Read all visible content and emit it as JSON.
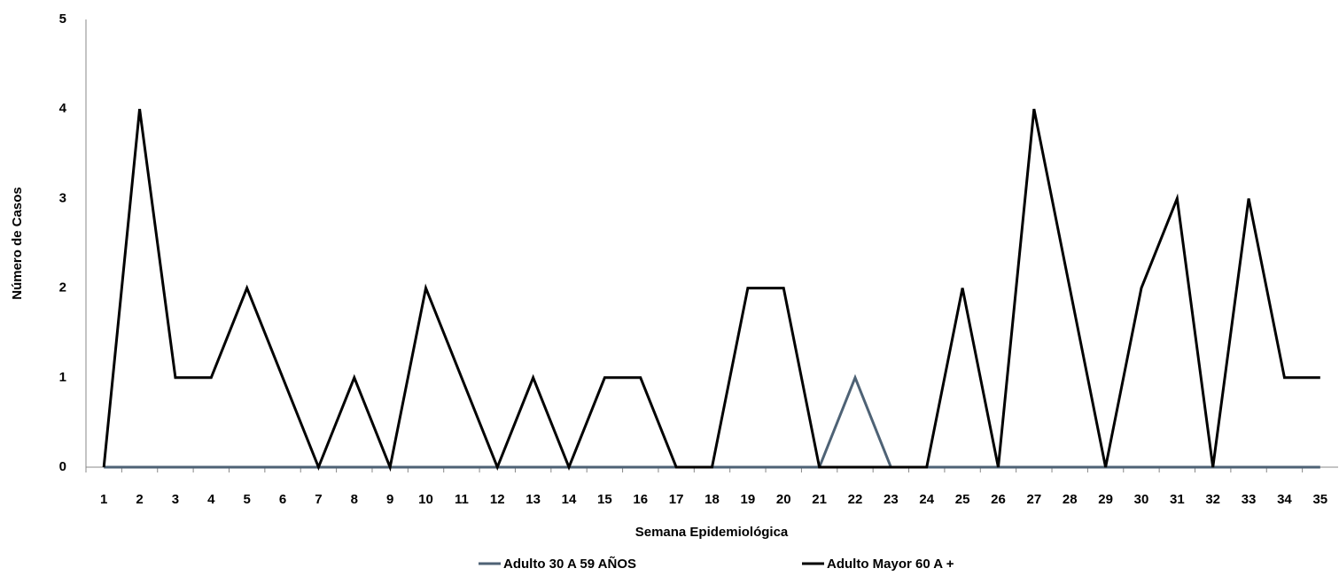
{
  "chart_data": {
    "type": "line",
    "x_label": "Semana Epidemiológica",
    "y_label": "Número de Casos",
    "categories": [
      "1",
      "2",
      "3",
      "4",
      "5",
      "6",
      "7",
      "8",
      "9",
      "10",
      "11",
      "12",
      "13",
      "14",
      "15",
      "16",
      "17",
      "18",
      "19",
      "20",
      "21",
      "22",
      "23",
      "24",
      "25",
      "26",
      "27",
      "28",
      "29",
      "30",
      "31",
      "32",
      "33",
      "34",
      "35"
    ],
    "series": [
      {
        "name": "Adulto 30 A 59 AÑOS",
        "color": "#4e6275",
        "values": [
          0,
          0,
          0,
          0,
          0,
          0,
          0,
          0,
          0,
          0,
          0,
          0,
          0,
          0,
          0,
          0,
          0,
          0,
          0,
          0,
          0,
          1,
          0,
          0,
          0,
          0,
          0,
          0,
          0,
          0,
          0,
          0,
          0,
          0,
          0
        ]
      },
      {
        "name": "Adulto Mayor 60 A +",
        "color": "#000000",
        "values": [
          0,
          4,
          1,
          1,
          2,
          1,
          0,
          1,
          0,
          2,
          1,
          0,
          1,
          0,
          1,
          1,
          0,
          0,
          2,
          2,
          0,
          0,
          0,
          0,
          2,
          0,
          4,
          2,
          0,
          2,
          3,
          0,
          3,
          1,
          1
        ]
      }
    ],
    "ylim": [
      0,
      5
    ],
    "yticks": [
      0,
      1,
      2,
      3,
      4,
      5
    ],
    "grid": false
  }
}
